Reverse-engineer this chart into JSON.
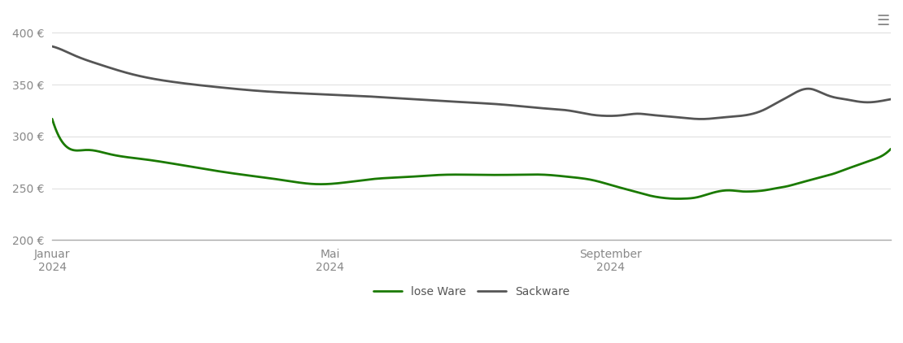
{
  "title": "",
  "background_color": "#ffffff",
  "grid_color": "#e0e0e0",
  "ylim": [
    200,
    420
  ],
  "yticks": [
    200,
    250,
    300,
    350,
    400
  ],
  "ytick_labels": [
    "200 €",
    "250 €",
    "300 €",
    "350 €",
    "400 €"
  ],
  "xtick_labels": [
    "Januar\n2024",
    "Mai\n2024",
    "September\n2024"
  ],
  "lose_ware_color": "#1a7a00",
  "sackware_color": "#555555",
  "line_width": 2.0,
  "legend_labels": [
    "lose Ware",
    "Sackware"
  ],
  "lose_ware_x": [
    0,
    5,
    15,
    25,
    40,
    60,
    80,
    100,
    115,
    125,
    140,
    155,
    170,
    185,
    200,
    215,
    225,
    235,
    245,
    255,
    260,
    265,
    270,
    275,
    280,
    285,
    290,
    295,
    300,
    305,
    310,
    315,
    320,
    325,
    330,
    335,
    340,
    345,
    350,
    355,
    360,
    365
  ],
  "lose_ware_y": [
    317,
    293,
    287,
    283,
    278,
    271,
    264,
    258,
    254,
    255,
    259,
    261,
    263,
    263,
    263,
    263,
    261,
    258,
    252,
    246,
    243,
    241,
    240,
    240,
    241,
    244,
    247,
    248,
    247,
    247,
    248,
    250,
    252,
    255,
    258,
    261,
    264,
    268,
    272,
    276,
    280,
    288
  ],
  "sackware_x": [
    0,
    5,
    10,
    20,
    35,
    55,
    75,
    90,
    105,
    115,
    125,
    135,
    150,
    165,
    180,
    195,
    205,
    215,
    225,
    230,
    235,
    240,
    245,
    250,
    255,
    260,
    265,
    270,
    275,
    280,
    285,
    290,
    295,
    300,
    305,
    310,
    315,
    320,
    325,
    330,
    335,
    340,
    345,
    350,
    355,
    360,
    365
  ],
  "sackware_y": [
    387,
    383,
    378,
    370,
    360,
    352,
    347,
    344,
    342,
    341,
    340,
    339,
    337,
    335,
    333,
    331,
    329,
    327,
    325,
    323,
    321,
    320,
    320,
    321,
    322,
    321,
    320,
    319,
    318,
    317,
    317,
    318,
    319,
    320,
    322,
    326,
    332,
    338,
    344,
    346,
    342,
    338,
    336,
    334,
    333,
    334,
    336
  ]
}
